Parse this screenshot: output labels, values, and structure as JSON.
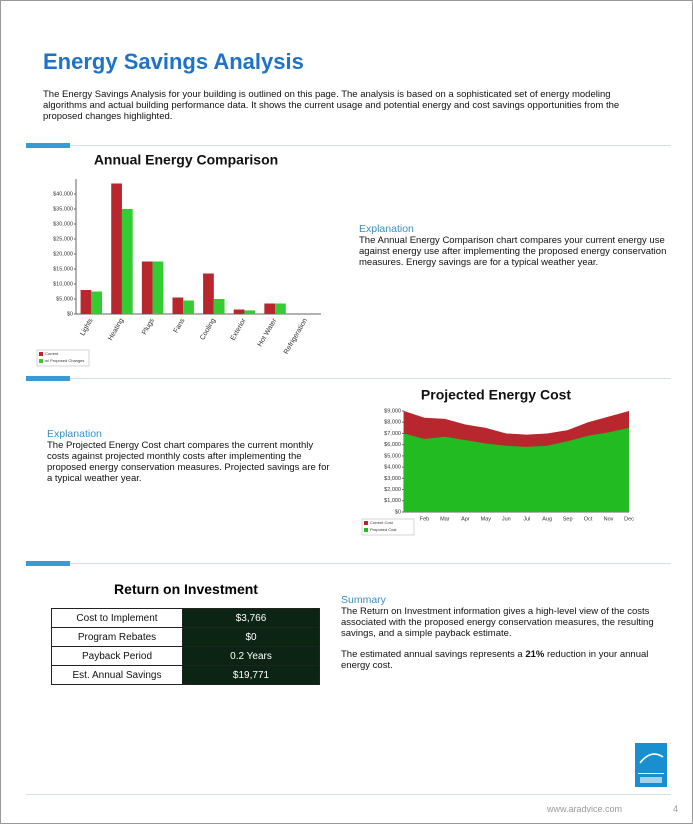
{
  "header": {
    "title": "Energy Savings Analysis",
    "intro": "The Energy Savings Analysis for your building is outlined on this page.  The analysis is based on a sophisticated set of energy modeling algorithms and actual building performance data. It shows the current usage and potential energy and cost savings opportunities from the proposed changes highlighted."
  },
  "explanation_1": {
    "heading": "Explanation",
    "text": "The Annual Energy Comparison chart compares your current energy use against energy use after implementing the proposed energy conservation measures. Energy savings are for a typical weather year."
  },
  "explanation_2": {
    "heading": "Explanation",
    "text": "The Projected Energy Cost chart compares the current monthly costs against projected monthly costs after implementing the proposed energy conservation measures.  Projected savings are for a typical weather year."
  },
  "roi": {
    "title": "Return on Investment",
    "rows": [
      [
        "Cost to Implement",
        "$3,766"
      ],
      [
        "Program Rebates",
        "$0"
      ],
      [
        "Payback Period",
        "0.2 Years"
      ],
      [
        "Est. Annual Savings",
        "$19,771"
      ]
    ]
  },
  "summary": {
    "heading": "Summary",
    "text": "The Return on Investment information gives a high-level view of the costs associated with the proposed energy conservation measures, the resulting savings, and a simple payback estimate.",
    "text_2": [
      "The estimated annual savings represents a ",
      "21%",
      " reduction in your annual energy cost."
    ]
  },
  "footer": {
    "url": "www.aradvice.com",
    "page": "4"
  },
  "chart_data": [
    {
      "type": "bar",
      "title": "Annual Energy Comparison",
      "categories": [
        "Lights",
        "Heating",
        "Plugs",
        "Fans",
        "Cooling",
        "Exterior",
        "Hot Water",
        "Refrigeration"
      ],
      "series": [
        {
          "name": "Current",
          "color": "#b8272e",
          "values": [
            8000,
            43500,
            17500,
            5500,
            13500,
            1500,
            3500,
            0
          ]
        },
        {
          "name": "w/ Proposed Changes",
          "color": "#33cc33",
          "values": [
            7500,
            35000,
            17500,
            4500,
            5000,
            1200,
            3500,
            0
          ]
        }
      ],
      "ylim": [
        0,
        45000
      ],
      "yticks": [
        {
          "value": 0,
          "label": "$0"
        },
        {
          "value": 5000,
          "label": "$5,000"
        },
        {
          "value": 10000,
          "label": "$10,000"
        },
        {
          "value": 15000,
          "label": "$15,000"
        },
        {
          "value": 20000,
          "label": "$20,000"
        },
        {
          "value": 25000,
          "label": "$25,000"
        },
        {
          "value": 30000,
          "label": "$30,000"
        },
        {
          "value": 35000,
          "label": "$35,000"
        },
        {
          "value": 40000,
          "label": "$40,000"
        }
      ],
      "legend": "bottom-left"
    },
    {
      "type": "area",
      "title": "Projected Energy Cost",
      "categories": [
        null,
        "Feb",
        "Mar",
        "Apr",
        "May",
        "Jun",
        "Jul",
        "Aug",
        "Sep",
        "Oct",
        "Nov",
        "Dec"
      ],
      "series": [
        {
          "name": "Current Cost",
          "color": "#b8272e",
          "values": [
            9000,
            8400,
            8300,
            7800,
            7500,
            7000,
            6900,
            7000,
            7300,
            8000,
            8500,
            9000
          ]
        },
        {
          "name": "Proposed Cost",
          "color": "#22bb22",
          "values": [
            7000,
            6500,
            6700,
            6400,
            6100,
            5900,
            5800,
            5900,
            6300,
            6800,
            7100,
            7500
          ]
        }
      ],
      "ylim": [
        0,
        9000
      ],
      "yticks": [
        {
          "value": 0,
          "label": "$0"
        },
        {
          "value": 1000,
          "label": "$1,000"
        },
        {
          "value": 2000,
          "label": "$2,000"
        },
        {
          "value": 3000,
          "label": "$3,000"
        },
        {
          "value": 4000,
          "label": "$4,000"
        },
        {
          "value": 5000,
          "label": "$5,000"
        },
        {
          "value": 6000,
          "label": "$6,000"
        },
        {
          "value": 7000,
          "label": "$7,000"
        },
        {
          "value": 8000,
          "label": "$8,000"
        },
        {
          "value": 9000,
          "label": "$9,000"
        }
      ],
      "legend": "bottom-left"
    }
  ]
}
